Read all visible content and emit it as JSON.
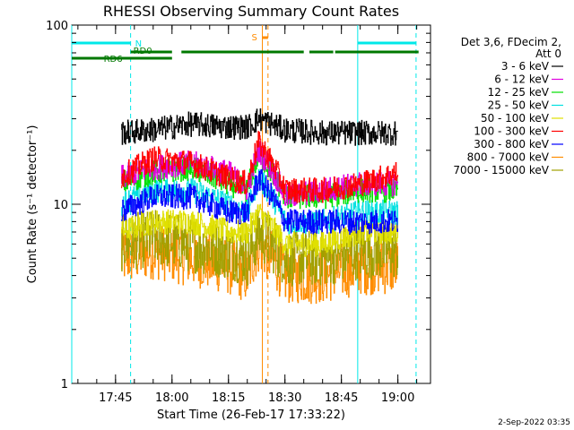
{
  "chart_data": {
    "type": "line",
    "title": "RHESSI Observing Summary Count Rates",
    "xlabel": "Start Time (26-Feb-17 17:33:22)",
    "ylabel": "Count Rate (s⁻¹ detector⁻¹)",
    "yscale": "log",
    "ylim": [
      1,
      100
    ],
    "xlim": [
      "17:33:22",
      "19:08:40"
    ],
    "x_ticks": [
      "17:45",
      "18:00",
      "18:15",
      "18:30",
      "18:45",
      "19:00"
    ],
    "y_ticks": [
      "1",
      "10",
      "100"
    ],
    "data_start": "17:46:30",
    "data_end": "19:00:00",
    "legend_header": [
      "Det 3,6, FDecim 2,",
      "Att 0"
    ],
    "series": [
      {
        "name": "3 - 6 keV",
        "color": "#000000",
        "x": [
          "17:46",
          "17:55",
          "18:05",
          "18:15",
          "18:20",
          "18:23",
          "18:30",
          "18:40",
          "18:50",
          "19:00"
        ],
        "values": [
          25,
          26,
          28,
          27,
          27,
          30,
          26,
          25,
          25,
          25
        ]
      },
      {
        "name": "6 - 12 keV",
        "color": "#e000e0",
        "x": [
          "17:46",
          "17:55",
          "18:05",
          "18:15",
          "18:20",
          "18:23",
          "18:30",
          "18:40",
          "18:50",
          "19:00"
        ],
        "values": [
          14,
          16,
          17,
          15,
          12,
          20,
          11,
          12,
          13,
          13
        ]
      },
      {
        "name": "12 - 25 keV",
        "color": "#00e000",
        "x": [
          "17:46",
          "17:55",
          "18:05",
          "18:15",
          "18:20",
          "18:23",
          "18:30",
          "18:40",
          "18:50",
          "19:00"
        ],
        "values": [
          13,
          15,
          16,
          13,
          12,
          19,
          11,
          11,
          12,
          12
        ]
      },
      {
        "name": "25 - 50 keV",
        "color": "#00e0e0",
        "x": [
          "17:46",
          "17:55",
          "18:05",
          "18:15",
          "18:20",
          "18:23",
          "18:30",
          "18:40",
          "18:50",
          "19:00"
        ],
        "values": [
          10,
          12,
          12,
          10,
          9,
          14,
          8,
          8,
          9,
          9
        ]
      },
      {
        "name": "50 - 100 keV",
        "color": "#e0e000",
        "x": [
          "17:46",
          "17:55",
          "18:05",
          "18:15",
          "18:20",
          "18:23",
          "18:30",
          "18:40",
          "18:50",
          "19:00"
        ],
        "values": [
          7,
          8,
          8,
          7,
          7,
          9,
          6,
          6,
          7,
          7
        ]
      },
      {
        "name": "100 - 300 keV",
        "color": "#ff0000",
        "x": [
          "17:46",
          "17:55",
          "18:05",
          "18:15",
          "18:20",
          "18:23",
          "18:30",
          "18:40",
          "18:50",
          "19:00"
        ],
        "values": [
          14,
          18,
          17,
          14,
          13,
          22,
          12,
          12,
          13,
          15
        ]
      },
      {
        "name": "300 - 800 keV",
        "color": "#0000ff",
        "x": [
          "17:46",
          "17:55",
          "18:05",
          "18:15",
          "18:20",
          "18:23",
          "18:30",
          "18:40",
          "18:50",
          "19:00"
        ],
        "values": [
          9,
          11,
          11,
          9,
          9,
          14,
          8,
          8,
          8,
          8
        ]
      },
      {
        "name": "800 - 7000 keV",
        "color": "#ff8c00",
        "x": [
          "17:46",
          "17:55",
          "18:05",
          "18:15",
          "18:20",
          "18:23",
          "18:30",
          "18:40",
          "18:50",
          "19:00"
        ],
        "values": [
          5,
          5.5,
          5,
          4.5,
          4,
          6,
          4,
          4,
          4.5,
          4.5
        ]
      },
      {
        "name": "7000 - 15000 keV",
        "color": "#a0a000",
        "x": [
          "17:46",
          "17:55",
          "18:05",
          "18:15",
          "18:20",
          "18:23",
          "18:30",
          "18:40",
          "18:50",
          "19:00"
        ],
        "values": [
          6,
          6.5,
          6,
          5.5,
          5,
          7,
          5,
          5,
          5.5,
          5.5
        ]
      }
    ],
    "annotations": {
      "night_label": "N",
      "saa_label": "S",
      "rd0_label": "RD0",
      "rd6_label": "RD6",
      "vlines_cyan": [
        "17:33:22",
        "17:49:00",
        "18:49:20",
        "19:04:50"
      ],
      "vlines_orange": [
        "18:24:00",
        "18:25:30"
      ],
      "night_intervals": [
        [
          "17:33:22",
          "17:49:00"
        ],
        [
          "18:49:20",
          "19:04:50"
        ]
      ],
      "saa_interval": [
        "18:24:00",
        "18:25:30"
      ],
      "rd0_intervals": [
        [
          "17:49:00",
          "18:00:00"
        ],
        [
          "18:02:30",
          "18:35:00"
        ],
        [
          "18:36:30",
          "18:42:50"
        ],
        [
          "18:43:20",
          "19:05:30"
        ]
      ],
      "rd6_intervals": [
        [
          "17:33:22",
          "18:00:00"
        ]
      ]
    },
    "grid": false
  },
  "footer": {
    "date": "2-Sep-2022 03:35"
  },
  "colors": {
    "night": "#00e8e8",
    "saa": "#ff8c00",
    "rd": "#007800",
    "axes": "#000000"
  }
}
